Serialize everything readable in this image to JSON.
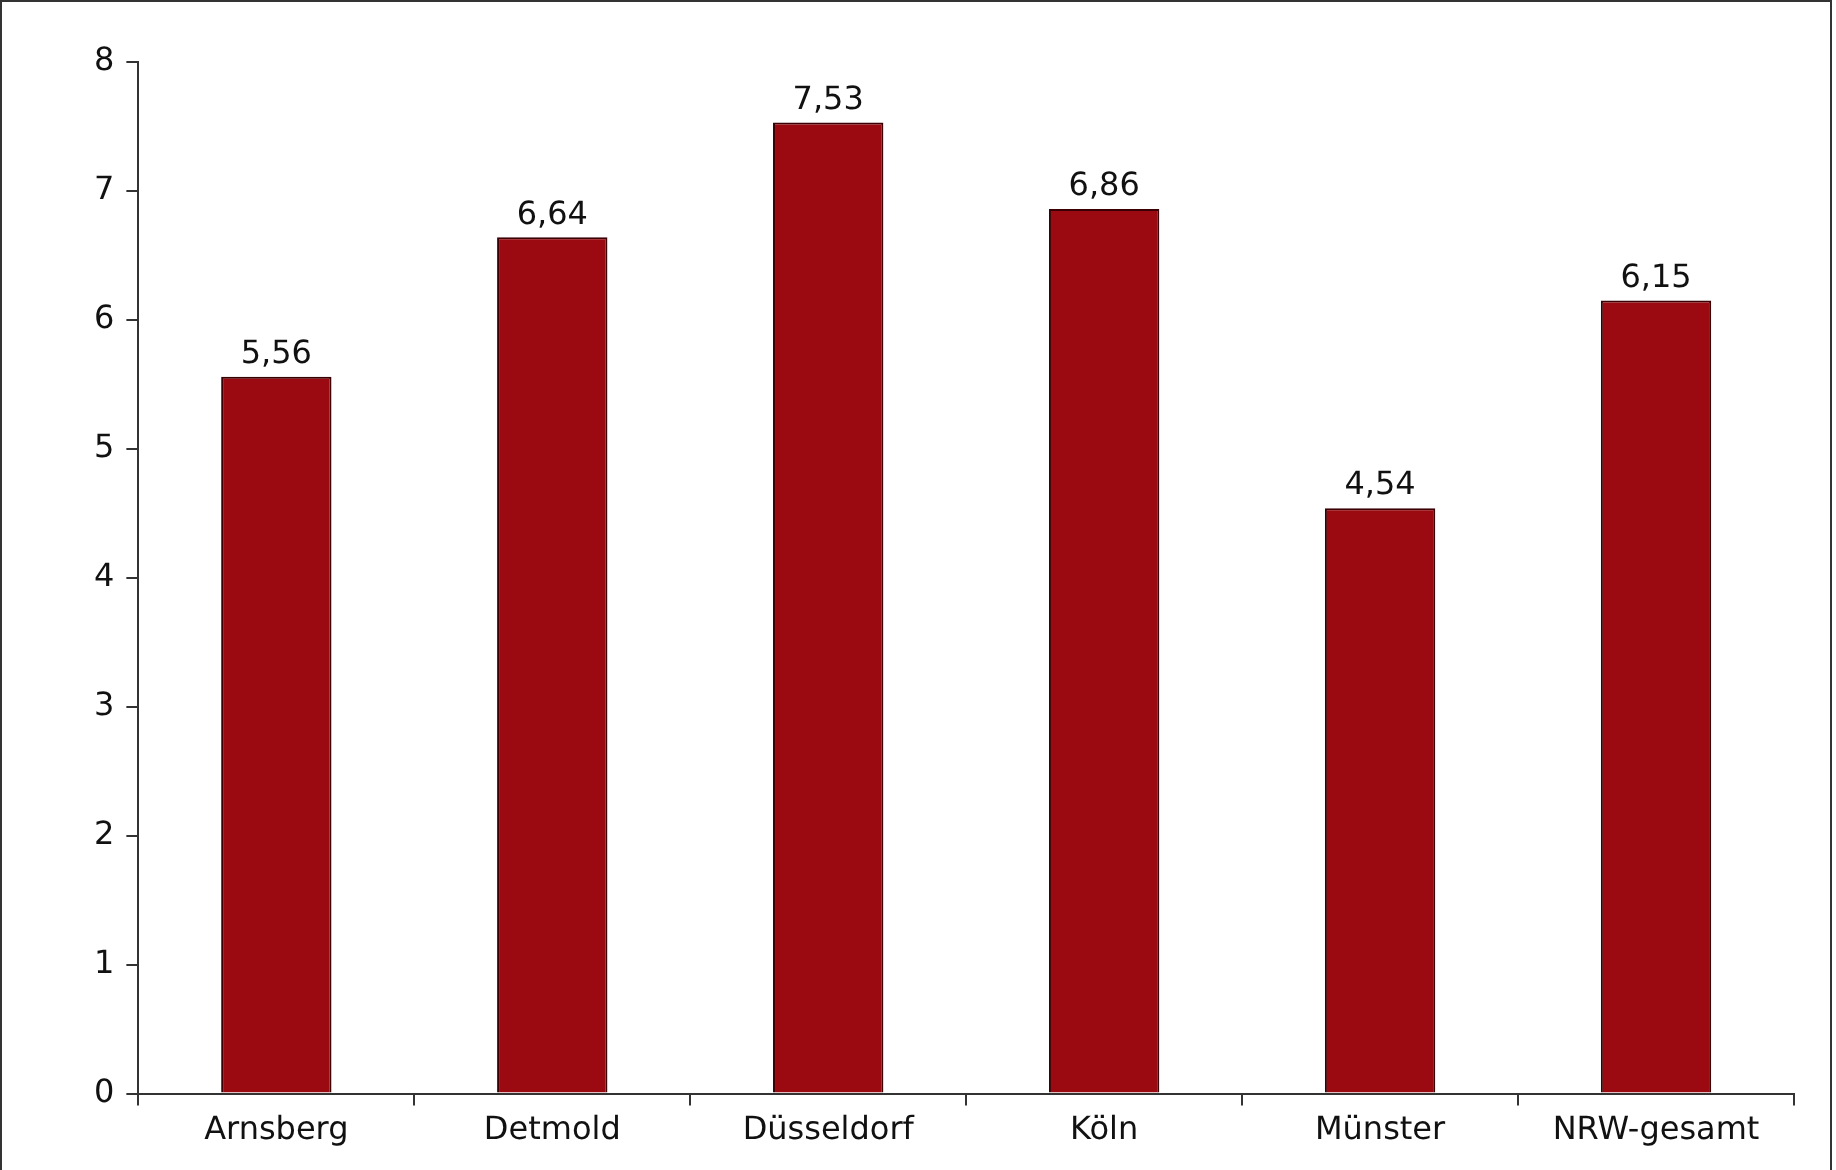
{
  "chart_data": {
    "type": "bar",
    "categories": [
      "Arnsberg",
      "Detmold",
      "Düsseldorf",
      "Köln",
      "Münster",
      "NRW-gesamt"
    ],
    "values": [
      5.56,
      6.64,
      7.53,
      6.86,
      4.54,
      6.15
    ],
    "value_labels": [
      "5,56",
      "6,64",
      "7,53",
      "6,86",
      "4,54",
      "6,15"
    ],
    "color": "#9b0a10",
    "ylim": [
      0,
      8
    ],
    "yticks": [
      0,
      1,
      2,
      3,
      4,
      5,
      6,
      7,
      8
    ],
    "grid": false,
    "legend": false
  }
}
